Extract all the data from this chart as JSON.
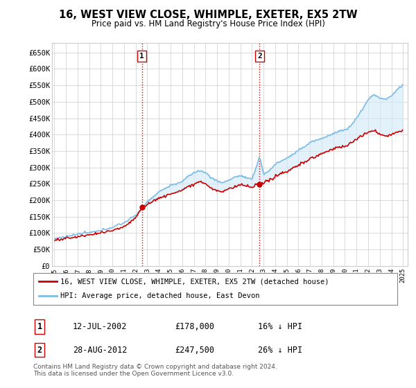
{
  "title": "16, WEST VIEW CLOSE, WHIMPLE, EXETER, EX5 2TW",
  "subtitle": "Price paid vs. HM Land Registry's House Price Index (HPI)",
  "legend_property": "16, WEST VIEW CLOSE, WHIMPLE, EXETER, EX5 2TW (detached house)",
  "legend_hpi": "HPI: Average price, detached house, East Devon",
  "transaction1_date": "12-JUL-2002",
  "transaction1_price": "£178,000",
  "transaction1_hpi": "16% ↓ HPI",
  "transaction2_date": "28-AUG-2012",
  "transaction2_price": "£247,500",
  "transaction2_hpi": "26% ↓ HPI",
  "footer": "Contains HM Land Registry data © Crown copyright and database right 2024.\nThis data is licensed under the Open Government Licence v3.0.",
  "ylim": [
    0,
    680000
  ],
  "yticks": [
    0,
    50000,
    100000,
    150000,
    200000,
    250000,
    300000,
    350000,
    400000,
    450000,
    500000,
    550000,
    600000,
    650000
  ],
  "ytick_labels": [
    "£0",
    "£50K",
    "£100K",
    "£150K",
    "£200K",
    "£250K",
    "£300K",
    "£350K",
    "£400K",
    "£450K",
    "£500K",
    "£550K",
    "£600K",
    "£650K"
  ],
  "hpi_color": "#7bbce8",
  "property_color": "#cc0000",
  "vline_color": "#cc0000",
  "transaction1_x": 2002.53,
  "transaction2_x": 2012.66,
  "transaction1_y": 178000,
  "transaction2_y": 247500,
  "background_color": "#ffffff",
  "grid_color": "#cccccc",
  "fill_color": "#d0e8f8",
  "fill_alpha": 0.6,
  "xlim_left": 1994.8,
  "xlim_right": 2025.4
}
